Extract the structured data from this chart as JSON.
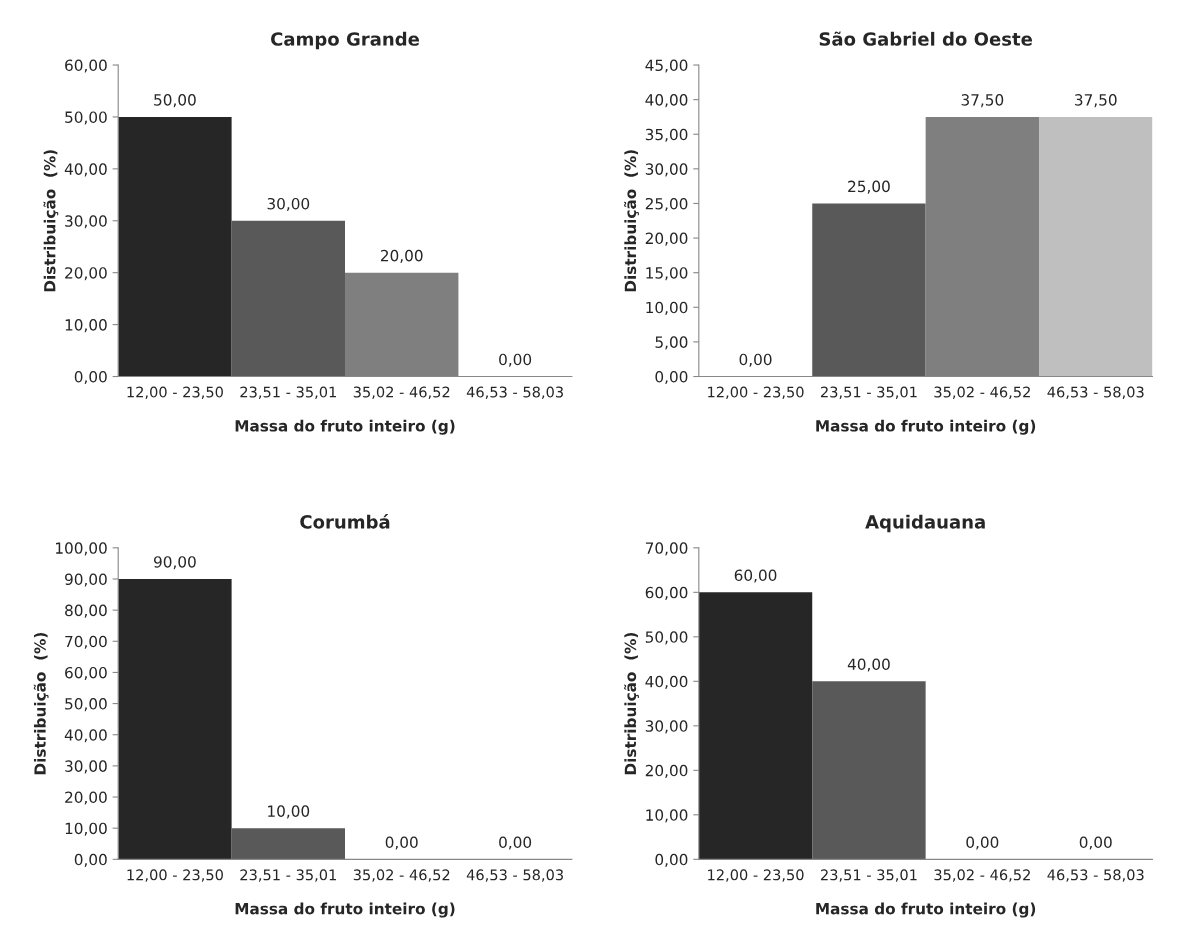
{
  "chart_data": [
    {
      "type": "bar",
      "title": "Campo Grande",
      "xlabel": "Massa do fruto inteiro (g)",
      "ylabel": "Distribuição  (%)",
      "categories": [
        "12,00 - 23,50",
        "23,51 - 35,01",
        "35,02 - 46,52",
        "46,53 - 58,03"
      ],
      "values": [
        50,
        30,
        20,
        0
      ],
      "colors": [
        "#262626",
        "#595959",
        "#7f7f7f",
        "#bfbfbf"
      ],
      "value_labels": [
        "50,00",
        "30,00",
        "20,00",
        "0,00"
      ],
      "ylim": [
        0,
        60
      ],
      "yticks": [
        {
          "value": 0,
          "label": "0,00"
        },
        {
          "value": 10,
          "label": "10,00"
        },
        {
          "value": 20,
          "label": "20,00"
        },
        {
          "value": 30,
          "label": "30,00"
        },
        {
          "value": 40,
          "label": "40,00"
        },
        {
          "value": 50,
          "label": "50,00"
        },
        {
          "value": 60,
          "label": "60,00"
        }
      ]
    },
    {
      "type": "bar",
      "title": "São Gabriel do Oeste",
      "xlabel": "Massa do fruto inteiro (g)",
      "ylabel": "Distribuição  (%)",
      "categories": [
        "12,00 - 23,50",
        "23,51 - 35,01",
        "35,02 - 46,52",
        "46,53 - 58,03"
      ],
      "values": [
        0,
        25,
        37.5,
        37.5
      ],
      "colors": [
        "#262626",
        "#595959",
        "#7f7f7f",
        "#bfbfbf"
      ],
      "value_labels": [
        "0,00",
        "25,00",
        "37,50",
        "37,50"
      ],
      "ylim": [
        0,
        45
      ],
      "yticks": [
        {
          "value": 0,
          "label": "0,00"
        },
        {
          "value": 5,
          "label": "5,00"
        },
        {
          "value": 10,
          "label": "10,00"
        },
        {
          "value": 15,
          "label": "15,00"
        },
        {
          "value": 20,
          "label": "20,00"
        },
        {
          "value": 25,
          "label": "25,00"
        },
        {
          "value": 30,
          "label": "30,00"
        },
        {
          "value": 35,
          "label": "35,00"
        },
        {
          "value": 40,
          "label": "40,00"
        },
        {
          "value": 45,
          "label": "45,00"
        }
      ]
    },
    {
      "type": "bar",
      "title": "Corumbá",
      "xlabel": "Massa do fruto inteiro (g)",
      "ylabel": "Distribuição  (%)",
      "categories": [
        "12,00 - 23,50",
        "23,51 - 35,01",
        "35,02 - 46,52",
        "46,53 - 58,03"
      ],
      "values": [
        90,
        10,
        0,
        0
      ],
      "colors": [
        "#262626",
        "#595959",
        "#7f7f7f",
        "#bfbfbf"
      ],
      "value_labels": [
        "90,00",
        "10,00",
        "0,00",
        "0,00"
      ],
      "ylim": [
        0,
        100
      ],
      "yticks": [
        {
          "value": 0,
          "label": "0,00"
        },
        {
          "value": 10,
          "label": "10,00"
        },
        {
          "value": 20,
          "label": "20,00"
        },
        {
          "value": 30,
          "label": "30,00"
        },
        {
          "value": 40,
          "label": "40,00"
        },
        {
          "value": 50,
          "label": "50,00"
        },
        {
          "value": 60,
          "label": "60,00"
        },
        {
          "value": 70,
          "label": "70,00"
        },
        {
          "value": 80,
          "label": "80,00"
        },
        {
          "value": 90,
          "label": "90,00"
        },
        {
          "value": 100,
          "label": "100,00"
        }
      ]
    },
    {
      "type": "bar",
      "title": "Aquidauana",
      "xlabel": "Massa do fruto inteiro (g)",
      "ylabel": "Distribuição  (%)",
      "categories": [
        "12,00 - 23,50",
        "23,51 - 35,01",
        "35,02 - 46,52",
        "46,53 - 58,03"
      ],
      "values": [
        60,
        40,
        0,
        0
      ],
      "colors": [
        "#262626",
        "#595959",
        "#7f7f7f",
        "#bfbfbf"
      ],
      "value_labels": [
        "60,00",
        "40,00",
        "0,00",
        "0,00"
      ],
      "ylim": [
        0,
        70
      ],
      "yticks": [
        {
          "value": 0,
          "label": "0,00"
        },
        {
          "value": 10,
          "label": "10,00"
        },
        {
          "value": 20,
          "label": "20,00"
        },
        {
          "value": 30,
          "label": "30,00"
        },
        {
          "value": 40,
          "label": "40,00"
        },
        {
          "value": 50,
          "label": "50,00"
        },
        {
          "value": 60,
          "label": "60,00"
        },
        {
          "value": 70,
          "label": "70,00"
        }
      ]
    }
  ]
}
